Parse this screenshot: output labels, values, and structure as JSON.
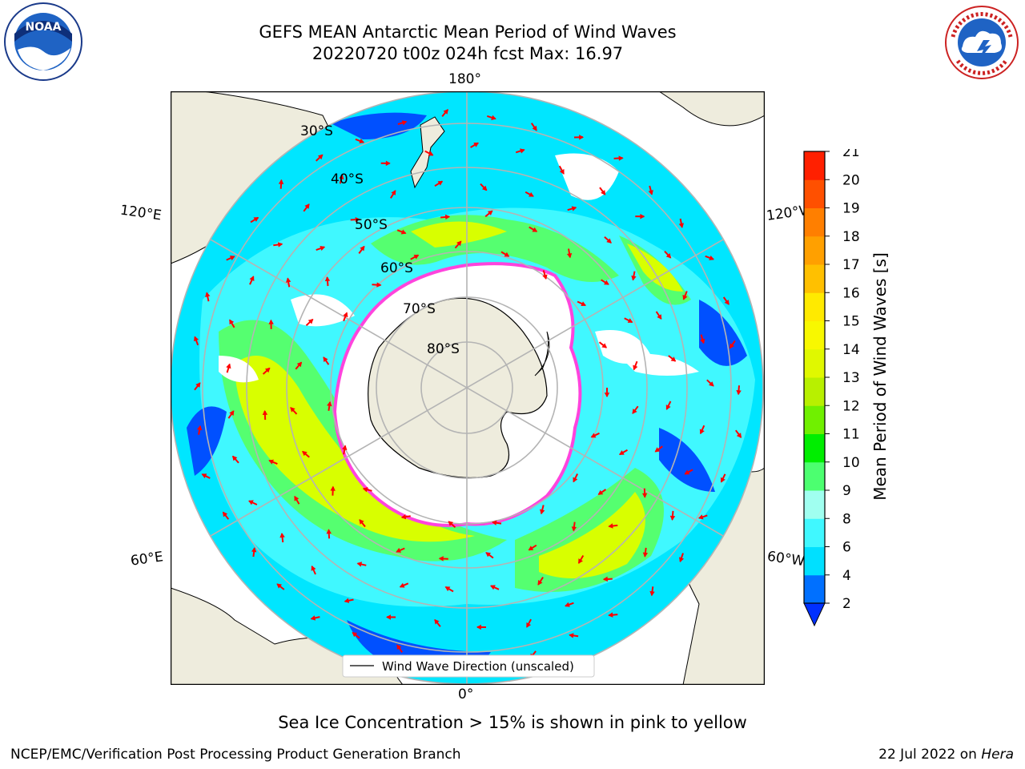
{
  "header": {
    "title_line1": "GEFS MEAN Antarctic Mean Period of Wind Waves",
    "title_line2": "20220720 t00z 024h fcst   Max: 16.97"
  },
  "map": {
    "projection": "south-polar-stereographic",
    "longitude_labels": {
      "top": "180°",
      "bottom": "0°",
      "upper_left": "120°E",
      "upper_right": "120°W",
      "lower_left": "60°E",
      "lower_right": "60°W"
    },
    "latitude_labels": [
      "30°S",
      "40°S",
      "50°S",
      "60°S",
      "70°S",
      "80°S"
    ],
    "legend_text": "Wind Wave Direction (unscaled)",
    "colors": {
      "land": "#eeecdd",
      "ocean_low": "#0050ff",
      "ocean_mid": "#00e6ff",
      "ocean_green": "#55ff70",
      "ocean_yellow": "#d8ff00",
      "sea_ice_edge": "#ff44dd",
      "arrows": "#ff0000",
      "graticule": "#b4b4b4"
    }
  },
  "colorbar": {
    "label": "Mean Period of Wind Waves [s]",
    "ticks": [
      "21",
      "20",
      "19",
      "18",
      "17",
      "16",
      "15",
      "14",
      "13",
      "12",
      "11",
      "10",
      "9",
      "8",
      "6",
      "4",
      "2"
    ],
    "levels": [
      2,
      4,
      6,
      8,
      9,
      10,
      11,
      12,
      13,
      14,
      15,
      16,
      17,
      18,
      19,
      20,
      21
    ],
    "extend": "min",
    "colors_bottom_to_top": [
      "#0070ff",
      "#00e0ff",
      "#40f8ff",
      "#a0fff0",
      "#4cff70",
      "#00ee00",
      "#70f000",
      "#b8f000",
      "#e0f800",
      "#f8f800",
      "#ffea00",
      "#ffc000",
      "#ffa000",
      "#ff7f00",
      "#ff5000",
      "#ff2000"
    ],
    "under_color": "#0030ff"
  },
  "footer": {
    "note": "Sea Ice Concentration > 15% is shown in pink to yellow",
    "credit": "NCEP/EMC/Verification Post Processing Product Generation Branch",
    "date_prefix": "22 Jul 2022 on ",
    "date_machine": "Hera"
  },
  "logos": {
    "noaa_text": "NOAA",
    "nws_text": "NATIONAL WEATHER SERVICE"
  }
}
